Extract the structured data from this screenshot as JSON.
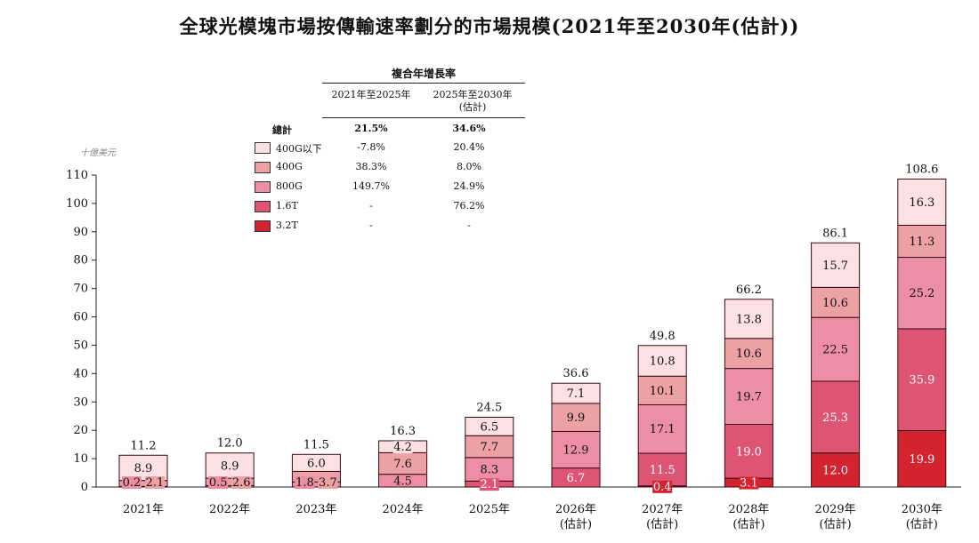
{
  "title": "全球光模塊市場按傳輸速率劃分的市場規模(2021年至2030年(估計))",
  "unit_label": "十億美元",
  "cagr_table": {
    "header": "複合年增長率",
    "col1": "2021年至2025年",
    "col2_line1": "2025年至2030年",
    "col2_line2": "(估計)",
    "total_label": "總計",
    "total_v1": "21.5%",
    "total_v2": "34.6%",
    "rows": [
      {
        "label": "400G以下",
        "v1": "-7.8%",
        "v2": "20.4%"
      },
      {
        "label": "400G",
        "v1": "38.3%",
        "v2": "8.0%"
      },
      {
        "label": "800G",
        "v1": "149.7%",
        "v2": "24.9%"
      },
      {
        "label": "1.6T",
        "v1": "-",
        "v2": "76.2%"
      },
      {
        "label": "3.2T",
        "v1": "-",
        "v2": "-"
      }
    ]
  },
  "chart_data": {
    "type": "bar",
    "stacked": true,
    "categories": [
      "2021年",
      "2022年",
      "2023年",
      "2024年",
      "2025年",
      "2026年",
      "2027年",
      "2028年",
      "2029年",
      "2030年"
    ],
    "category_sublabels": [
      "",
      "",
      "",
      "",
      "",
      "(估計)",
      "(估計)",
      "(估計)",
      "(估計)",
      "(估計)"
    ],
    "yticks": [
      0,
      10,
      20,
      30,
      40,
      50,
      60,
      70,
      80,
      90,
      100,
      110
    ],
    "ylim": [
      0,
      110
    ],
    "series": [
      {
        "name": "3.2T",
        "color": "#d3232f",
        "values": [
          null,
          null,
          null,
          null,
          null,
          null,
          0.4,
          3.1,
          12.0,
          19.9
        ]
      },
      {
        "name": "1.6T",
        "color": "#de5574",
        "values": [
          null,
          null,
          null,
          null,
          2.1,
          6.7,
          11.5,
          19.0,
          25.3,
          35.9
        ]
      },
      {
        "name": "800G",
        "color": "#ec8fa6",
        "values": [
          0.2,
          0.5,
          1.8,
          4.5,
          8.3,
          12.9,
          17.1,
          19.7,
          22.5,
          25.2
        ]
      },
      {
        "name": "400G",
        "color": "#eca1a5",
        "values": [
          2.1,
          2.6,
          3.7,
          7.6,
          7.7,
          9.9,
          10.1,
          10.6,
          10.6,
          11.3
        ]
      },
      {
        "name": "400G以下",
        "color": "#fbe1e4",
        "values": [
          8.9,
          8.9,
          6.0,
          4.2,
          6.5,
          7.1,
          10.8,
          13.8,
          15.7,
          16.3
        ]
      }
    ],
    "totals": [
      "11.2",
      "12.0",
      "11.5",
      "16.3",
      "24.5",
      "36.6",
      "49.8",
      "66.2",
      "86.1",
      "108.6"
    ],
    "grid": false,
    "legend_placement": "top-left"
  }
}
